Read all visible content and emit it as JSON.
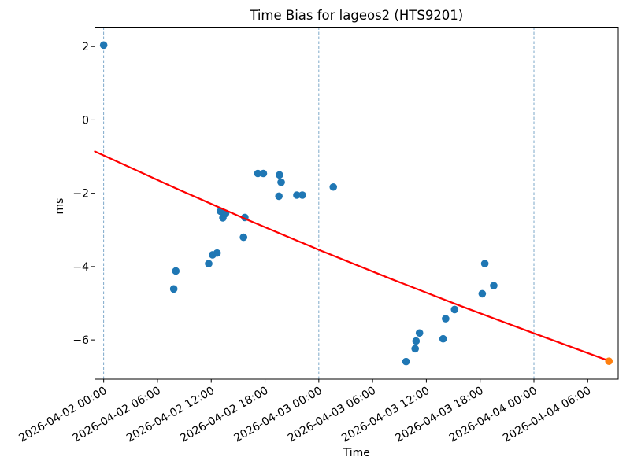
{
  "figure": {
    "background": "#ffffff"
  },
  "chart_data": {
    "type": "scatter",
    "title": "Time Bias for lageos2 (HTS9201)",
    "xlabel": "Time",
    "ylabel": "ms",
    "x_ticks": [
      "2026-04-02 00:00",
      "2026-04-02 06:00",
      "2026-04-02 12:00",
      "2026-04-02 18:00",
      "2026-04-03 00:00",
      "2026-04-03 06:00",
      "2026-04-03 12:00",
      "2026-04-03 18:00",
      "2026-04-04 00:00",
      "2026-04-04 06:00"
    ],
    "y_ticks": [
      2,
      0,
      -2,
      -4,
      -6
    ],
    "xlim_hours": [
      -0.98,
      57.4
    ],
    "ylim": [
      -7.07,
      2.53
    ],
    "grid": "vertical dashed lines at day boundaries",
    "day_gridlines": [
      "2026-04-02 00:00",
      "2026-04-03 00:00",
      "2026-04-04 00:00"
    ],
    "zero_line": true,
    "legend": "none",
    "colors": {
      "observations": "#1f77b4",
      "prediction": "#ff7f0e",
      "trend": "#ff0000",
      "day_gridline": "#6f9fc4",
      "axis": "#000000"
    },
    "series": [
      {
        "name": "time-bias-observations",
        "type": "scatter",
        "color": "#1f77b4",
        "points": [
          [
            "2026-04-02 00:00",
            2.04
          ],
          [
            "2026-04-02 07:49",
            -4.61
          ],
          [
            "2026-04-02 08:03",
            -4.12
          ],
          [
            "2026-04-02 11:43",
            -3.92
          ],
          [
            "2026-04-02 12:09",
            -3.68
          ],
          [
            "2026-04-02 12:39",
            -3.63
          ],
          [
            "2026-04-02 13:02",
            -2.49
          ],
          [
            "2026-04-02 13:18",
            -2.67
          ],
          [
            "2026-04-02 13:36",
            -2.55
          ],
          [
            "2026-04-02 15:36",
            -3.2
          ],
          [
            "2026-04-02 15:45",
            -2.66
          ],
          [
            "2026-04-02 17:12",
            -1.46
          ],
          [
            "2026-04-02 17:49",
            -1.46
          ],
          [
            "2026-04-02 19:33",
            -2.08
          ],
          [
            "2026-04-02 19:37",
            -1.5
          ],
          [
            "2026-04-02 19:48",
            -1.7
          ],
          [
            "2026-04-02 21:33",
            -2.05
          ],
          [
            "2026-04-02 22:10",
            -2.05
          ],
          [
            "2026-04-03 01:37",
            -1.83
          ],
          [
            "2026-04-03 09:44",
            -6.59
          ],
          [
            "2026-04-03 10:45",
            -6.24
          ],
          [
            "2026-04-03 10:51",
            -6.03
          ],
          [
            "2026-04-03 11:14",
            -5.81
          ],
          [
            "2026-04-03 13:52",
            -5.97
          ],
          [
            "2026-04-03 14:09",
            -5.42
          ],
          [
            "2026-04-03 15:09",
            -5.17
          ],
          [
            "2026-04-03 18:14",
            -4.74
          ],
          [
            "2026-04-03 18:31",
            -3.92
          ],
          [
            "2026-04-03 19:31",
            -4.52
          ]
        ]
      },
      {
        "name": "trend-fit-line",
        "type": "line",
        "color": "#ff0000",
        "samples_hours_ms": [
          [
            -0.98,
            -0.86
          ],
          [
            8,
            -1.86
          ],
          [
            16,
            -2.72
          ],
          [
            24,
            -3.54
          ],
          [
            32,
            -4.33
          ],
          [
            40,
            -5.09
          ],
          [
            48,
            -5.82
          ],
          [
            56.37,
            -6.57
          ]
        ]
      },
      {
        "name": "prediction-point",
        "type": "scatter",
        "color": "#ff7f0e",
        "points": [
          [
            "2026-04-04 08:22",
            -6.58
          ]
        ]
      }
    ]
  }
}
